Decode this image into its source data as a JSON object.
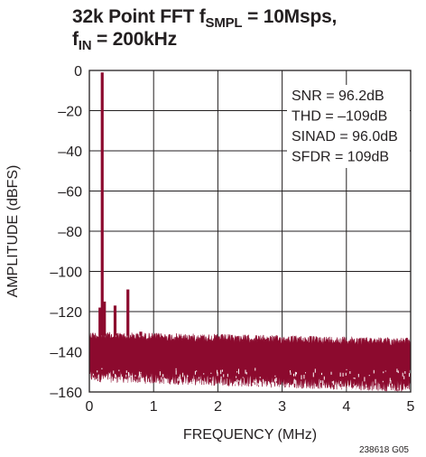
{
  "title": {
    "line1_main": "32k Point FFT f",
    "line1_sub": "SMPL",
    "line1_rest": " = 10Msps,",
    "line2_main": "f",
    "line2_sub": "IN",
    "line2_rest": " = 200kHz"
  },
  "figure_id": "238618 G05",
  "colors": {
    "trace": "#8c0a2e",
    "grid": "#231f20",
    "text": "#231f20"
  },
  "chart_data": {
    "type": "line",
    "title": "32k Point FFT fSMPL = 10Msps, fIN = 200kHz",
    "xlabel": "FREQUENCY (MHz)",
    "ylabel": "AMPLITUDE (dBFS)",
    "xlim": [
      0,
      5
    ],
    "ylim": [
      -160,
      0
    ],
    "x_ticks": [
      0,
      1,
      2,
      3,
      4,
      5
    ],
    "y_ticks": [
      0,
      -20,
      -40,
      -60,
      -80,
      -100,
      -120,
      -140,
      -160
    ],
    "x_tick_labels": [
      "0",
      "1",
      "2",
      "3",
      "4",
      "5"
    ],
    "y_tick_labels": [
      "0",
      "–20",
      "–40",
      "–60",
      "–80",
      "–100",
      "–120",
      "–140",
      "–160"
    ],
    "grid": true,
    "noise_floor": {
      "upper_dbfs": [
        -130,
        -133
      ],
      "lower_dbfs": [
        -155,
        -160
      ]
    },
    "spikes": [
      {
        "x": 0.2,
        "y": -1
      },
      {
        "x": 0.165,
        "y": -118
      },
      {
        "x": 0.235,
        "y": -115
      },
      {
        "x": 0.4,
        "y": -117
      },
      {
        "x": 0.6,
        "y": -109
      },
      {
        "x": 0.8,
        "y": -130
      }
    ],
    "annotations": [
      "SNR = 96.2dB",
      "THD = –109dB",
      "SINAD = 96.0dB",
      "SFDR = 109dB"
    ]
  }
}
